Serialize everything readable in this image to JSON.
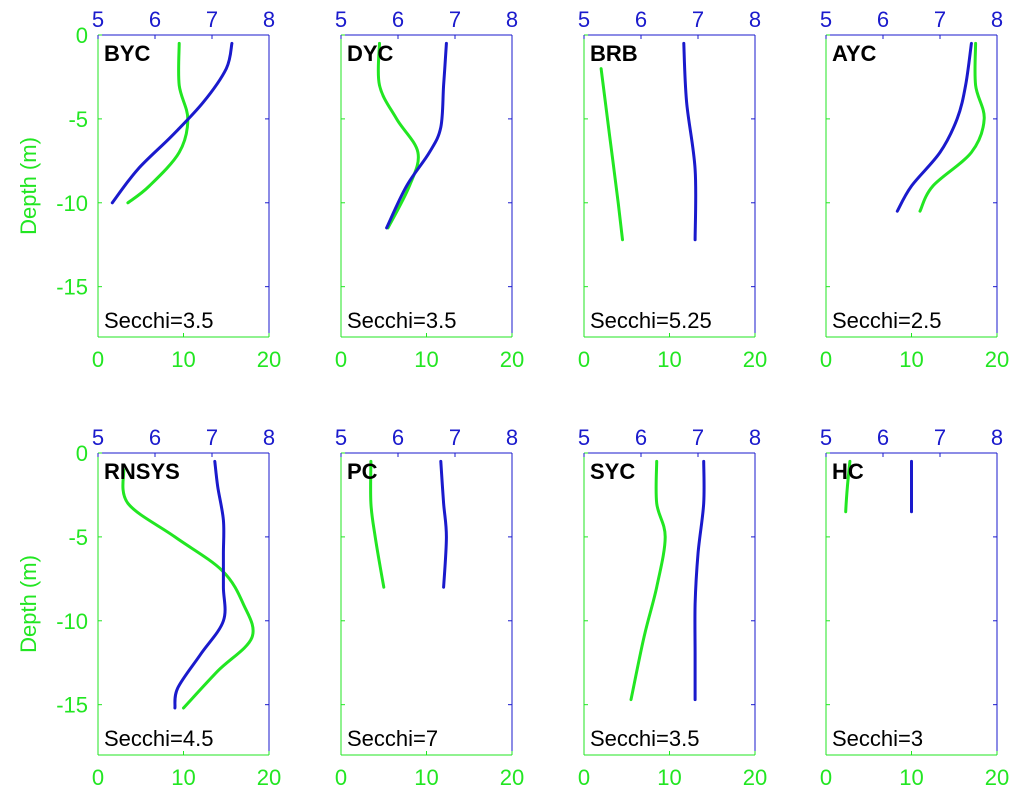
{
  "chart_data": {
    "type": "line",
    "ylabel": "Depth (m)",
    "ylim": [
      -18,
      0
    ],
    "y_ticks": [
      "0",
      "-5",
      "-10",
      "-15"
    ],
    "bottom_axis": {
      "range": [
        0,
        20
      ],
      "ticks": [
        "0",
        "10",
        "20"
      ],
      "color": "#22e622"
    },
    "top_axis": {
      "range": [
        5,
        8
      ],
      "ticks": [
        "5",
        "6",
        "7",
        "8"
      ],
      "color": "#1a1acc"
    },
    "series_colors": {
      "bottom_axis_series": "#22e622",
      "top_axis_series": "#1a1acc"
    },
    "panels": [
      {
        "site": "BYC",
        "secchi": "Secchi=3.5",
        "green": {
          "depth": [
            -0.5,
            -3,
            -5,
            -7,
            -9,
            -10
          ],
          "value": [
            9.5,
            9.5,
            10.5,
            9.5,
            6.0,
            3.5
          ]
        },
        "blue": {
          "depth": [
            -0.5,
            -2,
            -4,
            -6,
            -8,
            -10
          ],
          "value": [
            7.35,
            7.25,
            6.85,
            6.3,
            5.7,
            5.25
          ]
        }
      },
      {
        "site": "DYC",
        "secchi": "Secchi=3.5",
        "green": {
          "depth": [
            -0.5,
            -3,
            -5,
            -7,
            -9,
            -11.5
          ],
          "value": [
            4.5,
            4.5,
            6.5,
            9.0,
            8.0,
            5.5
          ]
        },
        "blue": {
          "depth": [
            -0.5,
            -3,
            -5.5,
            -7,
            -9,
            -11.5
          ],
          "value": [
            6.85,
            6.8,
            6.75,
            6.55,
            6.15,
            5.8
          ]
        }
      },
      {
        "site": "BRB",
        "secchi": "Secchi=5.25",
        "green": {
          "depth": [
            -2,
            -6,
            -10,
            -12.2
          ],
          "value": [
            2.0,
            3.0,
            4.0,
            4.5
          ]
        },
        "blue": {
          "depth": [
            -0.5,
            -4,
            -8,
            -12.2
          ],
          "value": [
            6.75,
            6.8,
            6.95,
            6.95
          ]
        }
      },
      {
        "site": "AYC",
        "secchi": "Secchi=2.5",
        "green": {
          "depth": [
            -0.5,
            -3,
            -5,
            -7,
            -9,
            -10.5
          ],
          "value": [
            17.5,
            17.5,
            18.5,
            17.0,
            12.5,
            11.0
          ]
        },
        "blue": {
          "depth": [
            -0.5,
            -3,
            -5,
            -7,
            -9,
            -10.5
          ],
          "value": [
            7.55,
            7.45,
            7.3,
            7.0,
            6.5,
            6.25
          ]
        }
      },
      {
        "site": "RNSYS",
        "secchi": "Secchi=4.5",
        "green": {
          "depth": [
            -1,
            -3,
            -5,
            -7,
            -9,
            -11,
            -13,
            -15.2
          ],
          "value": [
            3.0,
            3.5,
            9.0,
            14.5,
            17.0,
            18.0,
            14.0,
            10.0
          ]
        },
        "blue": {
          "depth": [
            -0.5,
            -2,
            -4,
            -6,
            -8,
            -10,
            -12,
            -14,
            -15.2
          ],
          "value": [
            7.05,
            7.1,
            7.2,
            7.2,
            7.2,
            7.2,
            6.8,
            6.4,
            6.35
          ]
        }
      },
      {
        "site": "PC",
        "secchi": "Secchi=7",
        "green": {
          "depth": [
            -0.5,
            -3,
            -5,
            -8
          ],
          "value": [
            3.5,
            3.5,
            4.0,
            5.0
          ]
        },
        "blue": {
          "depth": [
            -0.5,
            -3,
            -5,
            -8
          ],
          "value": [
            6.75,
            6.8,
            6.85,
            6.8
          ]
        }
      },
      {
        "site": "SYC",
        "secchi": "Secchi=3.5",
        "green": {
          "depth": [
            -0.5,
            -3,
            -5,
            -8,
            -11,
            -14.7
          ],
          "value": [
            8.5,
            8.5,
            9.5,
            8.5,
            7.0,
            5.5
          ]
        },
        "blue": {
          "depth": [
            -0.5,
            -3,
            -6,
            -9,
            -12,
            -14.7
          ],
          "value": [
            7.1,
            7.1,
            7.0,
            6.95,
            6.95,
            6.95
          ]
        }
      },
      {
        "site": "HC",
        "secchi": "Secchi=3",
        "green": {
          "depth": [
            -0.5,
            -2,
            -3.5
          ],
          "value": [
            2.8,
            2.5,
            2.3
          ]
        },
        "blue": {
          "depth": [
            -0.5,
            -2,
            -3.5
          ],
          "value": [
            6.5,
            6.5,
            6.5
          ]
        }
      }
    ]
  }
}
